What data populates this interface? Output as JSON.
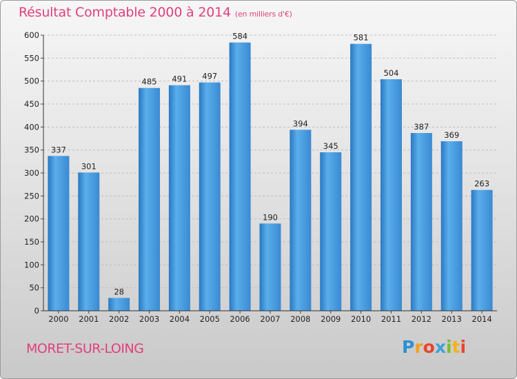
{
  "chart_data": {
    "type": "bar",
    "title": "Résultat Comptable 2000 à 2014",
    "subtitle": "(en milliers d'€)",
    "categories": [
      "2000",
      "2001",
      "2002",
      "2003",
      "2004",
      "2005",
      "2006",
      "2007",
      "2008",
      "2009",
      "2010",
      "2011",
      "2012",
      "2013",
      "2014"
    ],
    "values": [
      337,
      301,
      28,
      485,
      491,
      497,
      584,
      190,
      394,
      345,
      581,
      504,
      387,
      369,
      263
    ],
    "ylim": [
      0,
      600
    ],
    "yticks": [
      0,
      50,
      100,
      150,
      200,
      250,
      300,
      350,
      400,
      450,
      500,
      550,
      600
    ],
    "xlabel": "",
    "ylabel": "",
    "grid": true,
    "bar_color": "#3d8fd8"
  },
  "commune": "MORET-SUR-LOING",
  "logo": {
    "letters": [
      "P",
      "r",
      "o",
      "x",
      "i",
      "t",
      "i"
    ]
  },
  "colors": {
    "accent": "#e0407a",
    "bar": "#3d8fd8"
  }
}
